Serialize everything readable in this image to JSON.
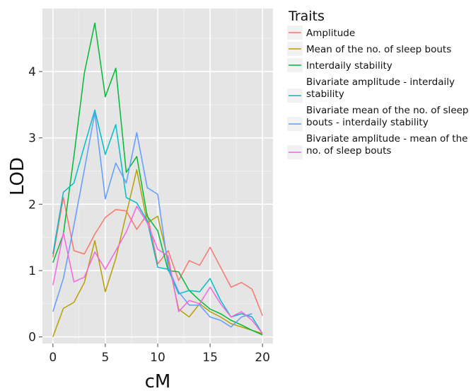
{
  "chart_data": {
    "type": "line",
    "xlabel": "cM",
    "ylabel": "LOD",
    "xlim": [
      -1,
      21
    ],
    "ylim": [
      -0.1,
      4.95
    ],
    "x_ticks": [
      0,
      5,
      10,
      15,
      20
    ],
    "y_ticks": [
      0,
      1,
      2,
      3,
      4
    ],
    "grid": true,
    "legend_title": "Traits",
    "legend_position": "right",
    "series": [
      {
        "name": "Amplitude",
        "color": "#F8766D",
        "legend_lines": [
          "Amplitude"
        ],
        "x": [
          0,
          1,
          2,
          3,
          4,
          5,
          6,
          7,
          8,
          9,
          10,
          11,
          12,
          13,
          14,
          15,
          16,
          17,
          18,
          19,
          20
        ],
        "y": [
          1.2,
          2.1,
          1.3,
          1.25,
          1.55,
          1.8,
          1.92,
          1.9,
          1.62,
          1.85,
          1.1,
          1.3,
          0.85,
          1.15,
          1.08,
          1.35,
          1.05,
          0.75,
          0.82,
          0.72,
          0.32
        ]
      },
      {
        "name": "Mean of the no. of sleep bouts",
        "color": "#B79F00",
        "legend_lines": [
          "Mean of the no. of sleep bouts"
        ],
        "x": [
          0,
          1,
          2,
          3,
          4,
          5,
          6,
          7,
          8,
          9,
          10,
          11,
          12,
          13,
          14,
          15,
          16,
          17,
          18,
          19,
          20
        ],
        "y": [
          0.0,
          0.43,
          0.52,
          0.82,
          1.45,
          0.68,
          1.18,
          1.85,
          2.52,
          1.72,
          1.82,
          1.15,
          0.42,
          0.3,
          0.5,
          0.38,
          0.3,
          0.2,
          0.15,
          0.1,
          0.05
        ]
      },
      {
        "name": "Interdaily stability",
        "color": "#00BA38",
        "legend_lines": [
          "Interdaily stability"
        ],
        "x": [
          0,
          1,
          2,
          3,
          4,
          5,
          6,
          7,
          8,
          9,
          10,
          11,
          12,
          13,
          14,
          15,
          16,
          17,
          18,
          19,
          20
        ],
        "y": [
          1.12,
          1.55,
          2.72,
          3.98,
          4.73,
          3.62,
          4.05,
          2.48,
          2.72,
          1.82,
          1.6,
          1.0,
          0.98,
          0.7,
          0.55,
          0.42,
          0.35,
          0.25,
          0.18,
          0.1,
          0.03
        ]
      },
      {
        "name": "Bivariate amplitude - interdaily stability",
        "color": "#00BFC4",
        "legend_lines": [
          "Bivariate amplitude - interdaily",
          "stability"
        ],
        "x": [
          0,
          1,
          2,
          3,
          4,
          5,
          6,
          7,
          8,
          9,
          10,
          11,
          12,
          13,
          14,
          15,
          16,
          17,
          18,
          19,
          20
        ],
        "y": [
          1.25,
          2.18,
          2.32,
          2.88,
          3.42,
          2.75,
          3.2,
          2.1,
          2.02,
          1.75,
          1.05,
          1.02,
          0.65,
          0.7,
          0.68,
          0.88,
          0.55,
          0.3,
          0.35,
          0.3,
          0.05
        ]
      },
      {
        "name": "Bivariate mean of the no. of sleep bouts - interdaily stability",
        "color": "#619CFF",
        "legend_lines": [
          "Bivariate mean of the no. of sleep",
          "bouts - interdaily stability"
        ],
        "x": [
          0,
          1,
          2,
          3,
          4,
          5,
          6,
          7,
          8,
          9,
          10,
          11,
          12,
          13,
          14,
          15,
          16,
          17,
          18,
          19
        ],
        "y": [
          0.38,
          0.88,
          1.68,
          2.52,
          3.38,
          2.08,
          2.62,
          2.32,
          3.08,
          2.25,
          2.15,
          1.05,
          0.68,
          0.48,
          0.48,
          0.3,
          0.25,
          0.15,
          0.3,
          0.35
        ]
      },
      {
        "name": "Bivariate amplitude - mean of the no. of sleep bouts",
        "color": "#F564E3",
        "legend_lines": [
          "Bivariate amplitude - mean of the",
          "no. of sleep bouts"
        ],
        "x": [
          0,
          1,
          2,
          3,
          4,
          5,
          6,
          7,
          8,
          9,
          10,
          11,
          12,
          13,
          14,
          15,
          16,
          17,
          18,
          19,
          20
        ],
        "y": [
          0.78,
          1.57,
          0.83,
          0.9,
          1.28,
          1.02,
          1.3,
          1.58,
          1.97,
          1.72,
          1.32,
          1.22,
          0.38,
          0.55,
          0.5,
          0.75,
          0.5,
          0.3,
          0.38,
          0.25,
          0.05
        ]
      }
    ]
  }
}
